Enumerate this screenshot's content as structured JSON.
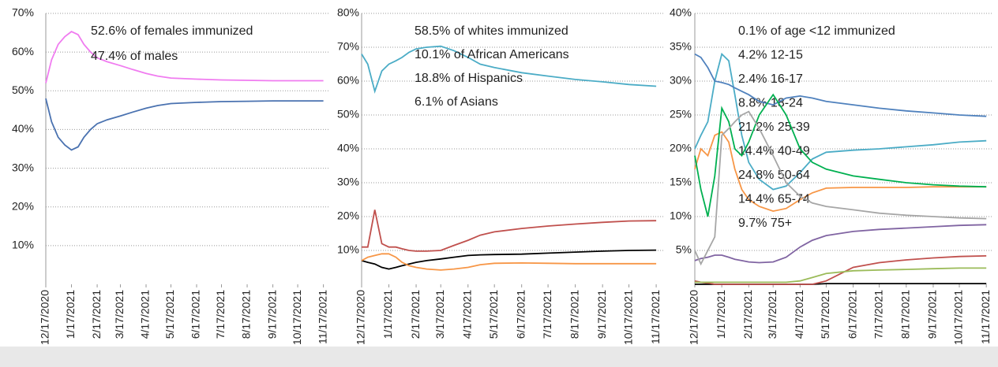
{
  "chart_data": [
    {
      "type": "line",
      "x": [
        "12/17/2020",
        "12/24/2020",
        "1/1/2021",
        "1/9/2021",
        "1/17/2021",
        "1/25/2021",
        "2/1/2021",
        "2/9/2021",
        "2/17/2021",
        "3/1/2021",
        "3/17/2021",
        "4/1/2021",
        "4/17/2021",
        "5/1/2021",
        "5/17/2021",
        "6/17/2021",
        "7/17/2021",
        "8/17/2021",
        "9/17/2021",
        "10/17/2021",
        "11/17/2021"
      ],
      "xlim": [
        "12/17/2020",
        "11/25/2021"
      ],
      "xticks": [
        "12/17/2020",
        "1/17/2021",
        "2/17/2021",
        "3/17/2021",
        "4/17/2021",
        "5/17/2021",
        "6/17/2021",
        "7/17/2021",
        "8/17/2021",
        "9/17/2021",
        "10/17/2021",
        "11/17/2021"
      ],
      "ylim": [
        0,
        70
      ],
      "yticks": [
        {
          "value": 10,
          "label": "10%"
        },
        {
          "value": 20,
          "label": "20%"
        },
        {
          "value": 30,
          "label": "30%"
        },
        {
          "value": 40,
          "label": "40%"
        },
        {
          "value": 50,
          "label": "50%"
        },
        {
          "value": 60,
          "label": "60%"
        },
        {
          "value": 70,
          "label": "70%"
        }
      ],
      "grid": true,
      "series": [
        {
          "name": "52.6% of females immunized",
          "color": "#f07cf0",
          "values": [
            52,
            58,
            62,
            64,
            65.3,
            64.5,
            62,
            60,
            58.5,
            57.5,
            56.5,
            55.5,
            54.5,
            53.8,
            53.3,
            53,
            52.8,
            52.7,
            52.6,
            52.6,
            52.6
          ]
        },
        {
          "name": "47.4% of males",
          "color": "#4a72b0",
          "values": [
            48,
            42,
            38,
            36,
            34.7,
            35.5,
            38,
            40,
            41.5,
            42.5,
            43.5,
            44.5,
            45.5,
            46.2,
            46.7,
            47,
            47.2,
            47.3,
            47.4,
            47.4,
            47.4
          ]
        }
      ]
    },
    {
      "type": "line",
      "x": [
        "12/17/2020",
        "12/24/2020",
        "1/1/2021",
        "1/9/2021",
        "1/17/2021",
        "1/25/2021",
        "2/1/2021",
        "2/9/2021",
        "2/17/2021",
        "3/1/2021",
        "3/17/2021",
        "4/1/2021",
        "4/17/2021",
        "5/1/2021",
        "5/17/2021",
        "6/17/2021",
        "7/17/2021",
        "8/17/2021",
        "9/17/2021",
        "10/17/2021",
        "11/17/2021"
      ],
      "xlim": [
        "12/17/2020",
        "11/25/2021"
      ],
      "xticks": [
        "12/17/2020",
        "1/17/2021",
        "2/17/2021",
        "3/17/2021",
        "4/17/2021",
        "5/17/2021",
        "6/17/2021",
        "7/17/2021",
        "8/17/2021",
        "9/17/2021",
        "10/17/2021",
        "11/17/2021"
      ],
      "ylim": [
        0,
        80
      ],
      "yticks": [
        {
          "value": 10,
          "label": "10%"
        },
        {
          "value": 20,
          "label": "20%"
        },
        {
          "value": 30,
          "label": "30%"
        },
        {
          "value": 40,
          "label": "40%"
        },
        {
          "value": 50,
          "label": "50%"
        },
        {
          "value": 60,
          "label": "60%"
        },
        {
          "value": 70,
          "label": "70%"
        },
        {
          "value": 80,
          "label": "80%"
        }
      ],
      "grid": true,
      "series": [
        {
          "name": "58.5% of whites immunized",
          "color": "#4bacc6",
          "values": [
            68,
            65,
            57,
            63,
            65,
            66,
            67,
            68.5,
            69.5,
            70,
            70.3,
            69,
            67,
            65,
            64,
            62.5,
            61.5,
            60.5,
            59.8,
            59,
            58.5
          ]
        },
        {
          "name": "10.1% of African Americans",
          "color": "#000000",
          "values": [
            7,
            6.5,
            6,
            5,
            4.5,
            5,
            5.5,
            6,
            6.5,
            7,
            7.5,
            8,
            8.5,
            8.7,
            8.8,
            8.9,
            9.2,
            9.5,
            9.8,
            10,
            10.1
          ]
        },
        {
          "name": "18.8% of Hispanics",
          "color": "#c0504d",
          "values": [
            11,
            11,
            22,
            12,
            11,
            11,
            10.5,
            10,
            9.8,
            9.8,
            10,
            11.5,
            13,
            14.5,
            15.5,
            16.5,
            17.2,
            17.8,
            18.3,
            18.7,
            18.8
          ]
        },
        {
          "name": "6.1% of Asians",
          "color": "#f79646",
          "values": [
            7,
            8,
            8.5,
            9,
            9,
            8,
            6.5,
            5.5,
            5,
            4.5,
            4.2,
            4.5,
            5,
            5.8,
            6.2,
            6.3,
            6.2,
            6.1,
            6.1,
            6.1,
            6.1
          ]
        }
      ]
    },
    {
      "type": "line",
      "x": [
        "12/17/2020",
        "12/24/2020",
        "1/1/2021",
        "1/9/2021",
        "1/17/2021",
        "1/25/2021",
        "2/1/2021",
        "2/9/2021",
        "2/17/2021",
        "3/1/2021",
        "3/17/2021",
        "4/1/2021",
        "4/17/2021",
        "5/1/2021",
        "5/17/2021",
        "6/17/2021",
        "7/17/2021",
        "8/17/2021",
        "9/17/2021",
        "10/17/2021",
        "11/17/2021"
      ],
      "xlim": [
        "12/17/2020",
        "11/25/2021"
      ],
      "xticks": [
        "12/17/2020",
        "1/17/2021",
        "2/17/2021",
        "3/17/2021",
        "4/17/2021",
        "5/17/2021",
        "6/17/2021",
        "7/17/2021",
        "8/17/2021",
        "9/17/2021",
        "10/17/2021",
        "11/17/2021"
      ],
      "ylim": [
        0,
        40
      ],
      "yticks": [
        {
          "value": 5,
          "label": "5%"
        },
        {
          "value": 10,
          "label": "10%"
        },
        {
          "value": 15,
          "label": "15%"
        },
        {
          "value": 20,
          "label": "20%"
        },
        {
          "value": 25,
          "label": "25%"
        },
        {
          "value": 30,
          "label": "30%"
        },
        {
          "value": 35,
          "label": "35%"
        },
        {
          "value": 40,
          "label": "40%"
        }
      ],
      "grid": true,
      "series": [
        {
          "name": "0.1% of age <12 immunized",
          "color": "#000000",
          "values": [
            0,
            0,
            0,
            0,
            0,
            0,
            0,
            0,
            0,
            0,
            0,
            0,
            0,
            0,
            0.1,
            0.1,
            0.1,
            0.1,
            0.1,
            0.1,
            0.1
          ]
        },
        {
          "name": "4.2% 12-15",
          "color": "#c0504d",
          "values": [
            0.5,
            0.3,
            0.2,
            0,
            0,
            0,
            0,
            0,
            0,
            0,
            0,
            0,
            0,
            0,
            0.5,
            2.5,
            3.2,
            3.6,
            3.9,
            4.1,
            4.2
          ]
        },
        {
          "name": "2.4% 16-17",
          "color": "#9bbb59",
          "values": [
            0.3,
            0.3,
            0.3,
            0.3,
            0.3,
            0.3,
            0.3,
            0.3,
            0.3,
            0.3,
            0.3,
            0.3,
            0.5,
            1,
            1.6,
            2,
            2.1,
            2.2,
            2.3,
            2.4,
            2.4
          ]
        },
        {
          "name": "8.8% 18-24",
          "color": "#8064a2",
          "values": [
            3.5,
            3.8,
            4,
            4.3,
            4.3,
            4,
            3.7,
            3.5,
            3.3,
            3.2,
            3.3,
            4,
            5.5,
            6.5,
            7.2,
            7.8,
            8.1,
            8.3,
            8.5,
            8.7,
            8.8
          ]
        },
        {
          "name": "21.2% 25-39",
          "color": "#4bacc6",
          "values": [
            20,
            22,
            24,
            30,
            34,
            33,
            28,
            22,
            18,
            15.5,
            14,
            14.5,
            16.5,
            18.5,
            19.5,
            19.8,
            20,
            20.3,
            20.6,
            21,
            21.2
          ]
        },
        {
          "name": "14.4% 40-49",
          "color": "#f79646",
          "values": [
            17,
            20,
            19,
            22,
            22.5,
            21,
            17,
            14,
            12.5,
            11.5,
            10.8,
            11.2,
            12.5,
            13.5,
            14.2,
            14.3,
            14.3,
            14.3,
            14.4,
            14.4,
            14.4
          ]
        },
        {
          "name": "24.8% 50-64",
          "color": "#4f81bd",
          "values": [
            34,
            33.5,
            32,
            30,
            29.8,
            29.5,
            29,
            28.5,
            28,
            27,
            26.5,
            27.5,
            27.8,
            27.5,
            27,
            26.5,
            26,
            25.6,
            25.3,
            25,
            24.8
          ]
        },
        {
          "name": "14.4% 65-74",
          "color": "#00b050",
          "values": [
            19,
            14,
            10,
            16,
            26,
            24,
            20,
            19,
            21,
            25,
            28,
            25,
            20,
            18,
            17,
            16,
            15.5,
            15,
            14.7,
            14.5,
            14.4
          ]
        },
        {
          "name": "9.7% 75+",
          "color": "#a6a6a6",
          "values": [
            5,
            3,
            5,
            7,
            22,
            23,
            24,
            25,
            25.5,
            23,
            19,
            15,
            13,
            12,
            11.5,
            11,
            10.5,
            10.2,
            10,
            9.8,
            9.7
          ]
        }
      ]
    }
  ]
}
